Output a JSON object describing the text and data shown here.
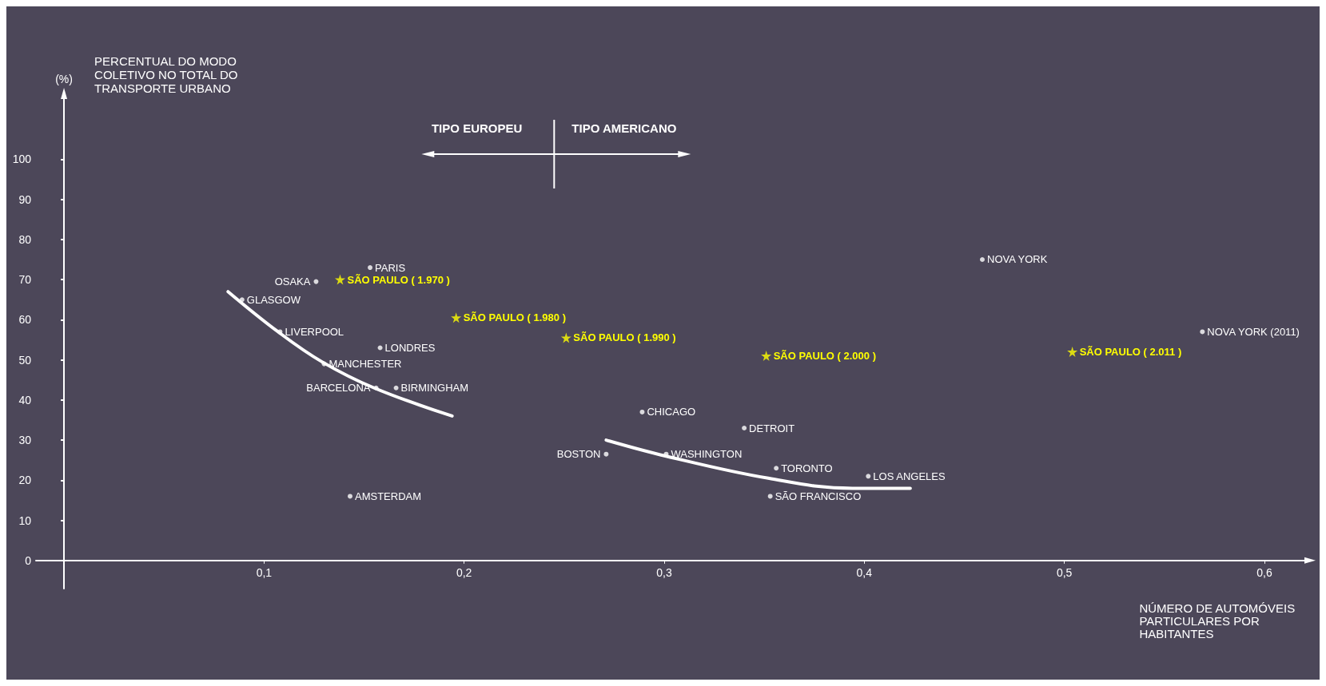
{
  "chart_data": {
    "type": "scatter",
    "ylabel": "PERCENTUAL DO MODO\nCOLETIVO NO TOTAL DO\nTRANSPORTE URBANO",
    "xlabel": "NÚMERO DE AUTOMÓVEIS\nPARTICULARES POR\nHABITANTES",
    "xlim": [
      -0.014,
      0.62
    ],
    "ylim": [
      -7,
      115
    ],
    "xticks": [
      {
        "value": 0.1,
        "label": "0,1"
      },
      {
        "value": 0.2,
        "label": "0,2"
      },
      {
        "value": 0.3,
        "label": "0,3"
      },
      {
        "value": 0.4,
        "label": "0,4"
      },
      {
        "value": 0.5,
        "label": "0,5"
      },
      {
        "value": 0.6,
        "label": "0,6"
      }
    ],
    "yticks": [
      0,
      10,
      20,
      30,
      40,
      50,
      60,
      70,
      80,
      90,
      100
    ],
    "grid": false,
    "series": [
      {
        "marker": "circle",
        "color": "#ffffff",
        "x": [
          0.153,
          0.126,
          0.089,
          0.108,
          0.158,
          0.13,
          0.156,
          0.166,
          0.143,
          0.459,
          0.569,
          0.289,
          0.34,
          0.271,
          0.301,
          0.356,
          0.402,
          0.353
        ],
        "values": [
          73,
          69.5,
          65,
          57,
          53,
          49,
          43,
          43,
          16,
          75,
          57,
          37,
          33,
          26.5,
          26.5,
          23,
          21,
          16
        ]
      },
      {
        "marker": "star",
        "color": "#ffff00",
        "x": [
          0.138,
          0.196,
          0.251,
          0.351,
          0.504
        ],
        "values": [
          70,
          60.5,
          55.5,
          51,
          52
        ]
      },
      {
        "type": "line",
        "marker": "none",
        "color": "#ffffff",
        "x": [
          0.082,
          0.107,
          0.129,
          0.155,
          0.194
        ],
        "values": [
          67,
          57,
          49.5,
          43,
          36
        ]
      },
      {
        "type": "line",
        "marker": "none",
        "color": "#ffffff",
        "x": [
          0.271,
          0.301,
          0.352,
          0.394,
          0.423
        ],
        "values": [
          30,
          26,
          20.5,
          18,
          18
        ]
      }
    ],
    "annotations": [
      "(%)",
      "TIPO EUROPEU",
      "TIPO AMERICANO",
      {
        "text": "PARIS",
        "x": 0.153,
        "y": 73
      },
      {
        "text": "OSAKA",
        "x": 0.126,
        "y": 69.5
      },
      {
        "text": "GLASGOW",
        "x": 0.089,
        "y": 65
      },
      {
        "text": "LIVERPOOL",
        "x": 0.108,
        "y": 57
      },
      {
        "text": "LONDRES",
        "x": 0.158,
        "y": 53
      },
      {
        "text": "MANCHESTER",
        "x": 0.13,
        "y": 49
      },
      {
        "text": "BARCELONA",
        "x": 0.156,
        "y": 43
      },
      {
        "text": "BIRMINGHAM",
        "x": 0.166,
        "y": 43
      },
      {
        "text": "AMSTERDAM",
        "x": 0.143,
        "y": 16
      },
      {
        "text": "NOVA YORK",
        "x": 0.459,
        "y": 75
      },
      {
        "text": "NOVA YORK (2011)",
        "x": 0.569,
        "y": 57
      },
      {
        "text": "CHICAGO",
        "x": 0.289,
        "y": 37
      },
      {
        "text": "DETROIT",
        "x": 0.34,
        "y": 33
      },
      {
        "text": "BOSTON",
        "x": 0.271,
        "y": 26.5
      },
      {
        "text": "WASHINGTON",
        "x": 0.301,
        "y": 26.5
      },
      {
        "text": "TORONTO",
        "x": 0.356,
        "y": 23
      },
      {
        "text": "LOS ANGELES",
        "x": 0.402,
        "y": 21
      },
      {
        "text": "SÃO FRANCISCO",
        "x": 0.353,
        "y": 16
      },
      {
        "text": "SÃO PAULO ( 1.970 )",
        "x": 0.138,
        "y": 70
      },
      {
        "text": "SÃO PAULO ( 1.980 )",
        "x": 0.196,
        "y": 60.5
      },
      {
        "text": "SÃO PAULO ( 1.990 )",
        "x": 0.251,
        "y": 55.5
      },
      {
        "text": "SÃO PAULO ( 2.000 )",
        "x": 0.351,
        "y": 51
      },
      {
        "text": "SÃO PAULO ( 2.011 )",
        "x": 0.504,
        "y": 52
      }
    ]
  }
}
